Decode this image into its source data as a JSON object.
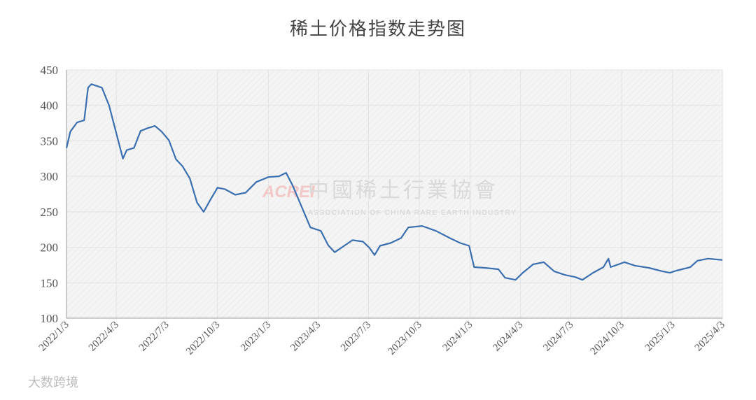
{
  "chart_data": {
    "type": "line",
    "title": "稀土价格指数走势图",
    "watermark": {
      "logo": "ACREI",
      "name": "中國稀土行業協會",
      "english": "ASSOCIATION OF CHINA RARE EARTH INDUSTRY"
    },
    "source_mark": "大数跨境",
    "x": [
      "2022/1/3",
      "2022/1/10",
      "2022/1/22",
      "2022/2/4",
      "2022/2/11",
      "2022/2/17",
      "2022/3/8",
      "2022/3/21",
      "2022/4/3",
      "2022/4/15",
      "2022/4/22",
      "2022/5/5",
      "2022/5/17",
      "2022/5/30",
      "2022/6/12",
      "2022/6/24",
      "2022/7/7",
      "2022/7/20",
      "2022/8/1",
      "2022/8/14",
      "2022/8/27",
      "2022/9/8",
      "2022/9/21",
      "2022/10/3",
      "2022/10/16",
      "2022/11/4",
      "2022/11/23",
      "2022/12/12",
      "2023/1/3",
      "2023/1/22",
      "2023/2/4",
      "2023/2/16",
      "2023/3/1",
      "2023/3/20",
      "2023/4/8",
      "2023/4/21",
      "2023/5/3",
      "2023/5/22",
      "2023/6/4",
      "2023/6/23",
      "2023/7/5",
      "2023/7/14",
      "2023/7/24",
      "2023/8/12",
      "2023/8/31",
      "2023/9/13",
      "2023/10/8",
      "2023/11/2",
      "2023/11/27",
      "2023/12/16",
      "2024/1/1",
      "2024/1/10",
      "2024/1/29",
      "2024/2/23",
      "2024/3/6",
      "2024/3/25",
      "2024/4/7",
      "2024/4/26",
      "2024/5/15",
      "2024/6/3",
      "2024/6/22",
      "2024/7/11",
      "2024/7/24",
      "2024/8/12",
      "2024/8/31",
      "2024/9/9",
      "2024/9/13",
      "2024/10/8",
      "2024/10/27",
      "2024/11/21",
      "2024/12/16",
      "2024/12/29",
      "2025/1/10",
      "2025/2/4",
      "2025/2/17",
      "2025/3/8",
      "2025/4/3"
    ],
    "series": [
      {
        "color": "#3a6fb0",
        "values": [
          340,
          363,
          376,
          379,
          425,
          430,
          425,
          400,
          361,
          325,
          337,
          340,
          364,
          368,
          371,
          363,
          351,
          324,
          314,
          297,
          263,
          250,
          268,
          284,
          282,
          274,
          277,
          292,
          299,
          300,
          305,
          287,
          263,
          228,
          223,
          203,
          193,
          203,
          210,
          208,
          199,
          189,
          202,
          206,
          213,
          228,
          230,
          223,
          213,
          206,
          202,
          172,
          171,
          169,
          157,
          154,
          164,
          176,
          179,
          166,
          161,
          158,
          154,
          164,
          172,
          184,
          172,
          179,
          174,
          171,
          166,
          164,
          167,
          172,
          181,
          184,
          182
        ]
      }
    ],
    "xlim": [
      "2022/1/3",
      "2025/4/3"
    ],
    "xticks": [
      "2022/1/3",
      "2022/4/3",
      "2022/7/3",
      "2022/10/3",
      "2023/1/3",
      "2023/4/3",
      "2023/7/3",
      "2023/10/3",
      "2024/1/3",
      "2024/4/3",
      "2024/7/3",
      "2024/10/3",
      "2025/1/3",
      "2025/4/3"
    ],
    "ylim": [
      100,
      450
    ],
    "yticks": [
      100,
      150,
      200,
      250,
      300,
      350,
      400,
      450
    ],
    "grid": true
  }
}
